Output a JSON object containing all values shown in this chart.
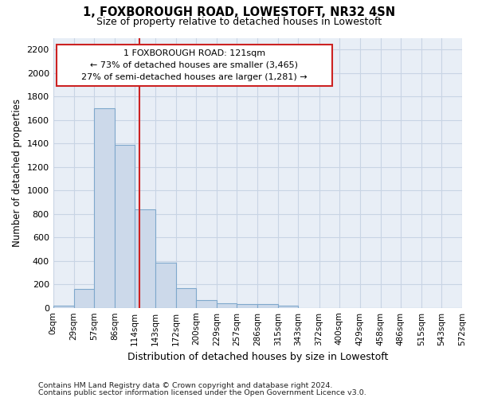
{
  "title": "1, FOXBOROUGH ROAD, LOWESTOFT, NR32 4SN",
  "subtitle": "Size of property relative to detached houses in Lowestoft",
  "xlabel": "Distribution of detached houses by size in Lowestoft",
  "ylabel": "Number of detached properties",
  "bin_edges": [
    0,
    29,
    57,
    86,
    114,
    143,
    172,
    200,
    229,
    257,
    286,
    315,
    343,
    372,
    400,
    429,
    458,
    486,
    515,
    543,
    572
  ],
  "bin_counts": [
    20,
    160,
    1700,
    1390,
    840,
    385,
    165,
    65,
    38,
    30,
    30,
    20,
    0,
    0,
    0,
    0,
    0,
    0,
    0,
    0
  ],
  "bar_color": "#ccd9ea",
  "bar_edgecolor": "#7fa8cc",
  "grid_color": "#c8d4e4",
  "bg_color": "#e8eef6",
  "red_line_x": 121,
  "annotation_line1": "1 FOXBOROUGH ROAD: 121sqm",
  "annotation_line2": "← 73% of detached houses are smaller (3,465)",
  "annotation_line3": "27% of semi-detached houses are larger (1,281) →",
  "annotation_box_color": "#ffffff",
  "annotation_border_color": "#cc2222",
  "footer_line1": "Contains HM Land Registry data © Crown copyright and database right 2024.",
  "footer_line2": "Contains public sector information licensed under the Open Government Licence v3.0.",
  "ylim": [
    0,
    2300
  ],
  "yticks": [
    0,
    200,
    400,
    600,
    800,
    1000,
    1200,
    1400,
    1600,
    1800,
    2000,
    2200
  ]
}
